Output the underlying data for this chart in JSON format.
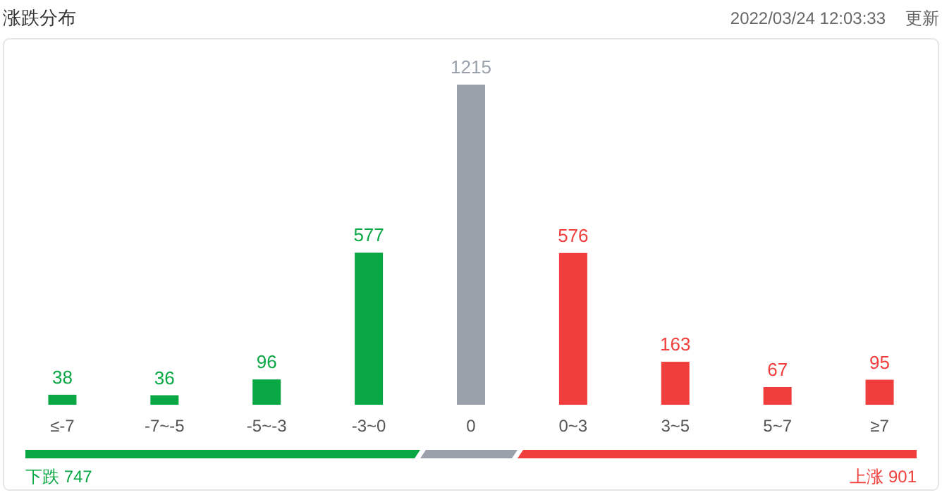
{
  "chart_data": {
    "type": "bar",
    "title": "涨跌分布",
    "annotations": [
      "2022/03/24 12:03:33",
      "更新",
      "下跌 747",
      "上涨 901"
    ],
    "categories": [
      "≤-7",
      "-7~-5",
      "-5~-3",
      "-3~0",
      "0",
      "0~3",
      "3~5",
      "5~7",
      "≥7"
    ],
    "values": [
      38,
      36,
      96,
      577,
      1215,
      576,
      163,
      67,
      95
    ],
    "colors": [
      "#0aa845",
      "#0aa845",
      "#0aa845",
      "#0aa845",
      "#9aa1ab",
      "#ef3e3b",
      "#ef3e3b",
      "#ef3e3b",
      "#ef3e3b"
    ],
    "data_labels": true
  }
}
